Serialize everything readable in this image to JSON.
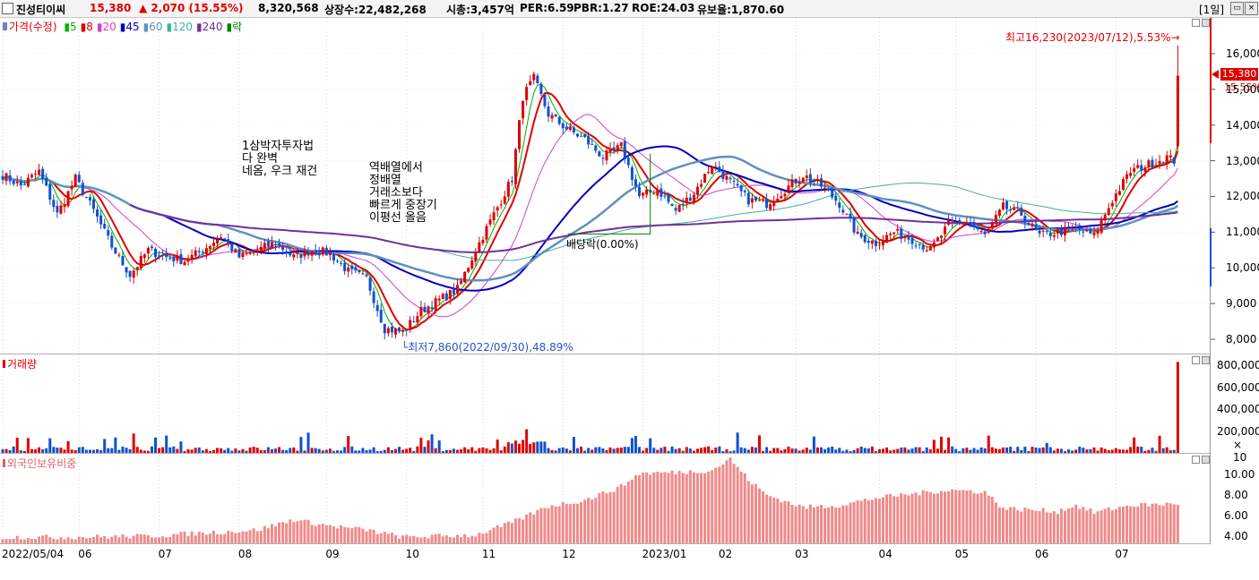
{
  "header": {
    "name": "진성티이씨",
    "price": "15,380",
    "change": "▲ 2,070 (15.55%)",
    "volume": "8,320,568",
    "listed": "상장수:22,482,268",
    "mktcap": "시총:3,457억",
    "per": "PER:6.59",
    "pbr": "PBR:1.27",
    "roe": "ROE:24.03",
    "float": "유보율:1,870.60",
    "period": "[1일]"
  },
  "price_panel": {
    "legend": {
      "label": "가격(수정)",
      "ma": [
        {
          "label": "5",
          "color": "#00b000"
        },
        {
          "label": "8",
          "color": "#e00000"
        },
        {
          "label": "20",
          "color": "#d040d0"
        },
        {
          "label": "45",
          "color": "#0000c0"
        },
        {
          "label": "60",
          "color": "#6090c0"
        },
        {
          "label": "120",
          "color": "#40b0a0"
        },
        {
          "label": "240",
          "color": "#7030a0"
        },
        {
          "label": "락",
          "color": "#008000"
        }
      ]
    },
    "annotations": {
      "high": "최고16,230(2023/07/12),5.53%",
      "low": "최저7,860(2022/09/30),48.89%",
      "dividend": "배당락(0.00%)",
      "note1_l1": "1삼박자투자법",
      "note1_l2": "다 완벽",
      "note1_l3": "네옴, 우크 재건",
      "note2_l1": "역배열에서",
      "note2_l2": "정배열",
      "note2_l3": "거래소보다",
      "note2_l3b": "빠르게 중장기",
      "note2_l4": "이평선 올음"
    },
    "current_label": "15,380",
    "current_pct": "15.55%"
  },
  "volume_panel": {
    "legend": "거래량",
    "unit": "× 10"
  },
  "foreign_panel": {
    "legend": "외국인보유비중"
  },
  "chart_data": [
    {
      "type": "candlestick",
      "title": "",
      "y_ticks": [
        8000,
        9000,
        10000,
        11000,
        12000,
        13000,
        14000,
        15000,
        16000
      ],
      "ylim": [
        7600,
        17000
      ],
      "x_ticks": [
        "2022/05/04",
        "06",
        "07",
        "08",
        "09",
        "10",
        "11",
        "12",
        "2023/01",
        "02",
        "03",
        "04",
        "05",
        "06",
        "07"
      ],
      "anchors": [
        [
          0,
          12600
        ],
        [
          5,
          12300
        ],
        [
          10,
          12700
        ],
        [
          15,
          11500
        ],
        [
          20,
          12500
        ],
        [
          25,
          11600
        ],
        [
          30,
          10600
        ],
        [
          35,
          9800
        ],
        [
          40,
          10500
        ],
        [
          45,
          10300
        ],
        [
          50,
          10200
        ],
        [
          55,
          10500
        ],
        [
          60,
          10900
        ],
        [
          65,
          10300
        ],
        [
          70,
          10500
        ],
        [
          75,
          10700
        ],
        [
          80,
          10300
        ],
        [
          85,
          10500
        ],
        [
          90,
          10400
        ],
        [
          95,
          9900
        ],
        [
          100,
          9700
        ],
        [
          105,
          8300
        ],
        [
          110,
          8200
        ],
        [
          115,
          8800
        ],
        [
          120,
          9100
        ],
        [
          125,
          9400
        ],
        [
          130,
          10500
        ],
        [
          135,
          11500
        ],
        [
          140,
          12500
        ],
        [
          143,
          14800
        ],
        [
          146,
          15300
        ],
        [
          150,
          14300
        ],
        [
          155,
          13900
        ],
        [
          160,
          13600
        ],
        [
          165,
          13100
        ],
        [
          170,
          13400
        ],
        [
          175,
          12000
        ],
        [
          180,
          12200
        ],
        [
          185,
          11600
        ],
        [
          190,
          12100
        ],
        [
          195,
          12900
        ],
        [
          200,
          12400
        ],
        [
          205,
          11900
        ],
        [
          210,
          11800
        ],
        [
          215,
          12200
        ],
        [
          220,
          12600
        ],
        [
          225,
          12300
        ],
        [
          230,
          11800
        ],
        [
          235,
          10900
        ],
        [
          240,
          10700
        ],
        [
          245,
          11000
        ],
        [
          250,
          10800
        ],
        [
          255,
          10500
        ],
        [
          260,
          11200
        ],
        [
          265,
          11300
        ],
        [
          270,
          10900
        ],
        [
          275,
          11700
        ],
        [
          280,
          11500
        ],
        [
          285,
          10900
        ],
        [
          290,
          11000
        ],
        [
          295,
          11100
        ],
        [
          300,
          10900
        ],
        [
          305,
          11900
        ],
        [
          310,
          12700
        ],
        [
          315,
          12900
        ],
        [
          320,
          13100
        ],
        [
          322,
          13000
        ],
        [
          323,
          15380
        ]
      ],
      "last": {
        "open": 13400,
        "high": 16230,
        "low": 13300,
        "close": 15380
      }
    },
    {
      "type": "bar",
      "title": "",
      "y_ticks": [
        "200,000",
        "400,000",
        "600,000",
        "800,000"
      ],
      "ylim": [
        0,
        900000
      ]
    },
    {
      "type": "bar",
      "title": "",
      "y_ticks": [
        "4.00",
        "6.00",
        "8.00",
        "10.00"
      ],
      "ylim": [
        3.3,
        12
      ],
      "anchors": [
        [
          0,
          3.9
        ],
        [
          20,
          3.9
        ],
        [
          40,
          4.0
        ],
        [
          60,
          4.4
        ],
        [
          70,
          4.6
        ],
        [
          80,
          5.6
        ],
        [
          90,
          5.0
        ],
        [
          100,
          4.6
        ],
        [
          110,
          3.9
        ],
        [
          130,
          4.1
        ],
        [
          140,
          5.3
        ],
        [
          150,
          6.9
        ],
        [
          160,
          7.5
        ],
        [
          170,
          8.8
        ],
        [
          175,
          10.1
        ],
        [
          185,
          10.2
        ],
        [
          195,
          10.4
        ],
        [
          200,
          11.5
        ],
        [
          205,
          9.5
        ],
        [
          210,
          8.0
        ],
        [
          220,
          6.8
        ],
        [
          230,
          7.0
        ],
        [
          240,
          7.7
        ],
        [
          250,
          8.1
        ],
        [
          260,
          8.5
        ],
        [
          270,
          8.3
        ],
        [
          275,
          6.7
        ],
        [
          290,
          6.4
        ],
        [
          295,
          7.0
        ],
        [
          300,
          6.3
        ],
        [
          310,
          7.0
        ],
        [
          320,
          7.1
        ],
        [
          323,
          7.2
        ]
      ]
    }
  ]
}
